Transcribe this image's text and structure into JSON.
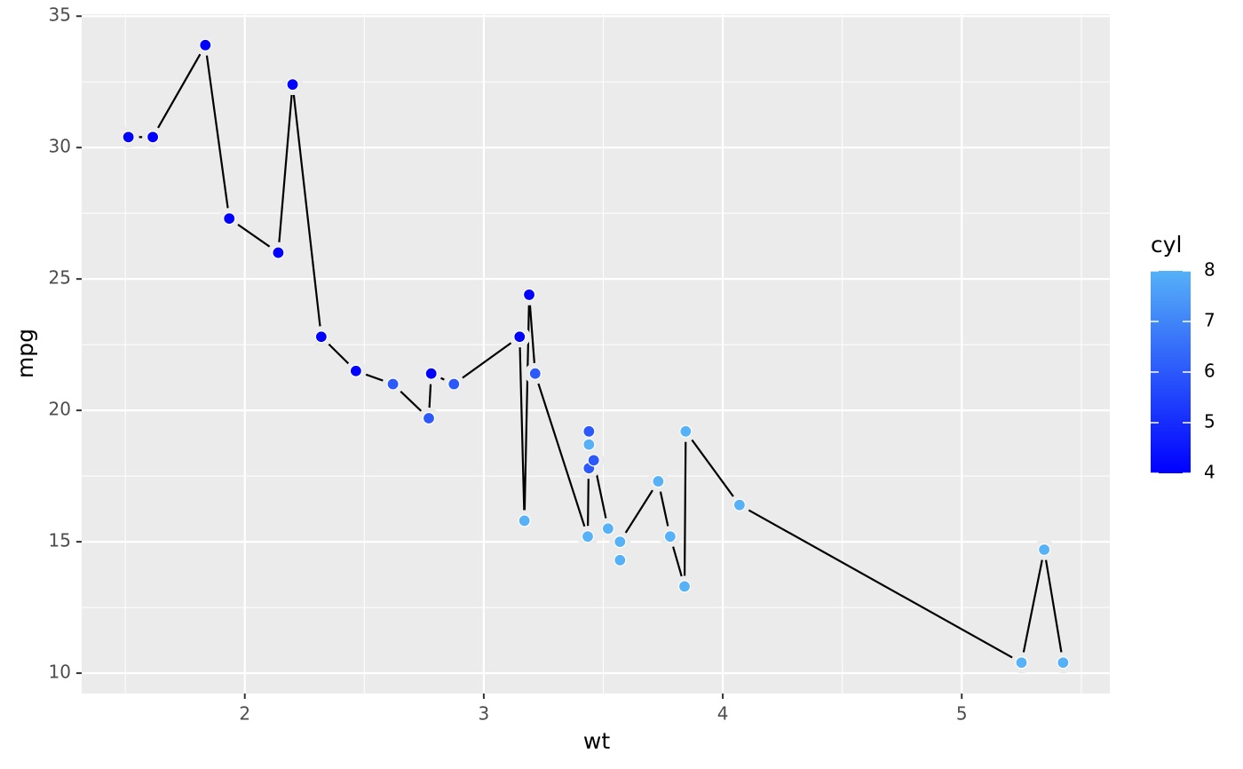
{
  "chart_data": {
    "type": "line",
    "x_label": "wt",
    "y_label": "mpg",
    "x": [
      1.513,
      1.615,
      1.835,
      1.935,
      2.14,
      2.2,
      2.32,
      2.465,
      2.62,
      2.77,
      2.78,
      2.875,
      3.15,
      3.17,
      3.19,
      3.215,
      3.435,
      3.44,
      3.44,
      3.44,
      3.46,
      3.52,
      3.57,
      3.57,
      3.73,
      3.78,
      3.84,
      3.845,
      4.07,
      5.25,
      5.345,
      5.424
    ],
    "series": [
      {
        "name": "mpg",
        "color": "#000000",
        "values": [
          30.4,
          30.4,
          33.9,
          27.3,
          26.0,
          32.4,
          22.8,
          21.5,
          21.0,
          19.7,
          21.4,
          21.0,
          22.8,
          15.8,
          24.4,
          21.4,
          15.2,
          18.7,
          19.2,
          17.8,
          18.1,
          15.5,
          14.3,
          15.0,
          17.3,
          15.2,
          13.3,
          19.2,
          16.4,
          10.4,
          14.7,
          10.4
        ],
        "cyl": [
          4,
          4,
          4,
          4,
          4,
          4,
          4,
          4,
          6,
          6,
          4,
          6,
          4,
          8,
          4,
          6,
          8,
          8,
          6,
          6,
          6,
          8,
          8,
          8,
          8,
          8,
          8,
          8,
          8,
          8,
          8,
          8
        ]
      }
    ],
    "xlim": [
      1.31745,
      5.61955
    ],
    "xticks": [
      2,
      3,
      4,
      5
    ],
    "xminor_ticks": [
      1.5,
      2.5,
      3.5,
      4.5,
      5.5
    ],
    "ylim": [
      9.225,
      35.075
    ],
    "yticks": [
      10,
      15,
      20,
      25,
      30,
      35
    ],
    "yminor_ticks": [
      12.5,
      17.5,
      22.5,
      27.5,
      32.5
    ],
    "grid": true,
    "colorbar": {
      "title": "cyl",
      "lim": [
        4,
        8
      ],
      "ticks": [
        4,
        5,
        6,
        7,
        8
      ],
      "color_low": "#0000ff",
      "color_high": "#56b1f7"
    }
  }
}
